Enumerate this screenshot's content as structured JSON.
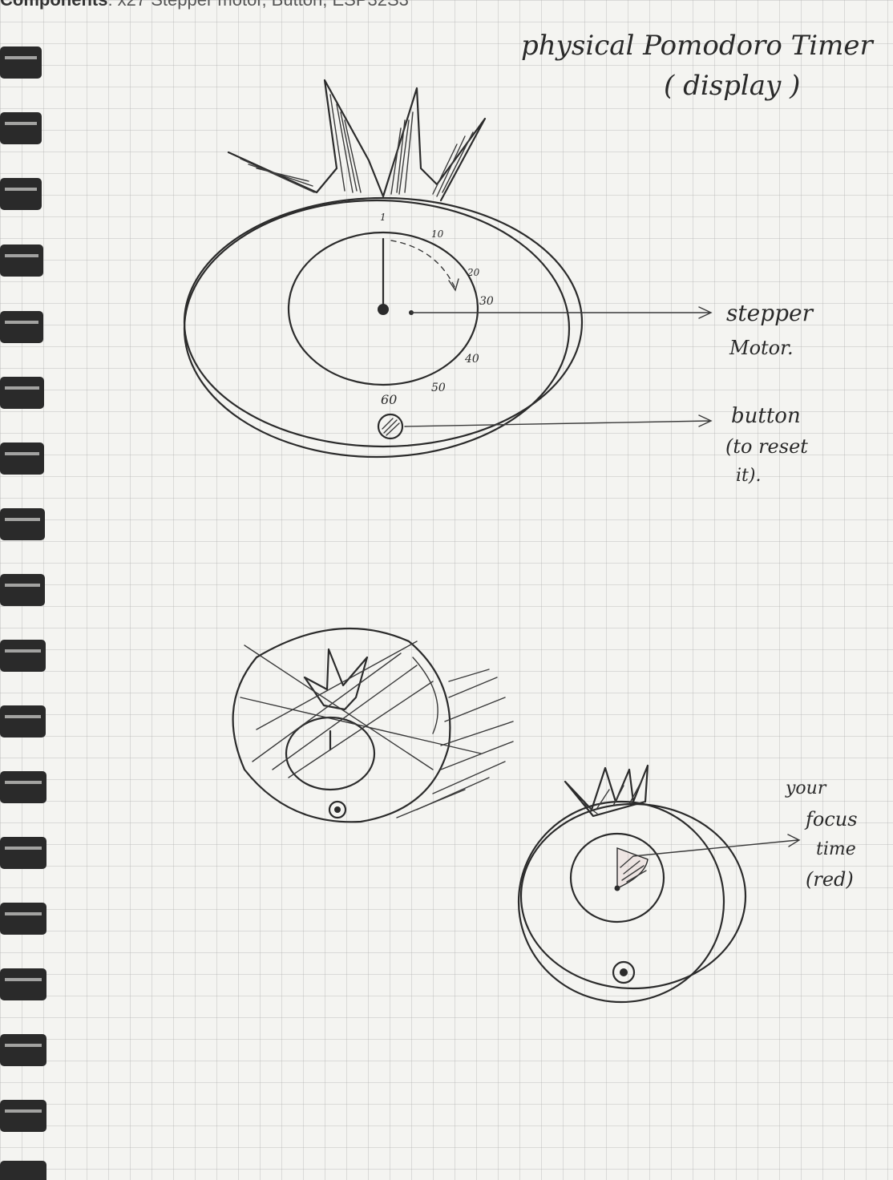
{
  "caption": {
    "bold": "Components",
    "rest": ": x27 Stepper motor, Button,  ESP32S3"
  },
  "title": {
    "line1": "physical Pomodoro Timer",
    "line2": "( display )"
  },
  "dial_ticks": [
    "1",
    "10",
    "20",
    "30",
    "40",
    "50",
    "60"
  ],
  "labels": {
    "stepper": {
      "line1": "stepper",
      "line2": "Motor."
    },
    "button": {
      "line1": "button",
      "line2": "(to reset",
      "line3": "it)."
    },
    "focus": {
      "line1": "your",
      "line2": "focus",
      "line3": "time",
      "line4": "(red)"
    }
  },
  "colors": {
    "ink": "#2b2b2b",
    "paper": "#f4f4f1",
    "grid": "#aaaaaa",
    "ring": "#2a2a2a"
  }
}
